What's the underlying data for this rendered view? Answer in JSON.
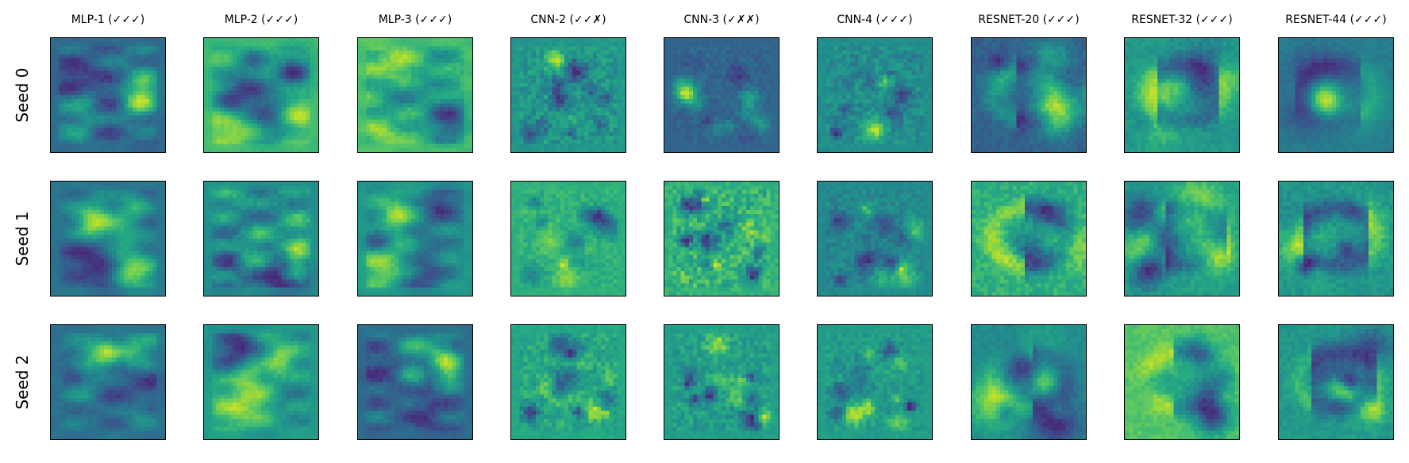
{
  "figure": {
    "columns": [
      "MLP-1 (✓✓✓)",
      "MLP-2 (✓✓✓)",
      "MLP-3 (✓✓✓)",
      "CNN-2 (✓✓✗)",
      "CNN-3 (✓✗✗)",
      "CNN-4 (✓✓✓)",
      "RESNET-20 (✓✓✓)",
      "RESNET-32 (✓✓✓)",
      "RESNET-44 (✓✓✓)"
    ],
    "rows": [
      "Seed 0",
      "Seed 1",
      "Seed 2"
    ]
  },
  "chart_data": {
    "type": "heatmap",
    "colormap": "viridis",
    "panel_grid": "3 rows x 9 columns",
    "axes_ticks": "hidden",
    "col_titles": [
      "MLP-1 (✓✓✓)",
      "MLP-2 (✓✓✓)",
      "MLP-3 (✓✓✓)",
      "CNN-2 (✓✓✗)",
      "CNN-3 (✓✗✗)",
      "CNN-4 (✓✓✓)",
      "RESNET-20 (✓✓✓)",
      "RESNET-32 (✓✓✓)",
      "RESNET-44 (✓✓✓)"
    ],
    "row_labels": [
      "Seed 0",
      "Seed 1",
      "Seed 2"
    ],
    "cells_per_panel": "28x28",
    "panel_styles": [
      "mlp",
      "mlp",
      "mlp",
      "cnn",
      "cnn",
      "cnn",
      "resnet",
      "resnet",
      "resnet"
    ]
  }
}
